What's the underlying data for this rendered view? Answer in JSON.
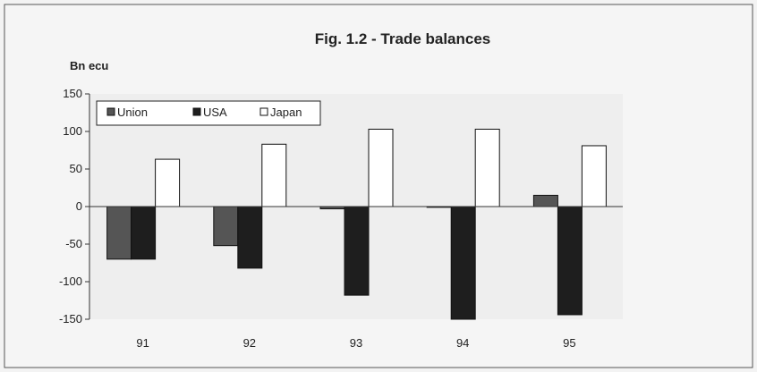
{
  "chart_data": {
    "type": "bar",
    "title": "Fig. 1.2 - Trade balances",
    "ylabel": "Bn ecu",
    "xlabel": "",
    "categories": [
      "91",
      "92",
      "93",
      "94",
      "95"
    ],
    "ylim": [
      -150,
      150
    ],
    "yticks": [
      150,
      100,
      50,
      0,
      -50,
      -100,
      -150
    ],
    "grid": false,
    "legend_position": "top-left",
    "series": [
      {
        "name": "Union",
        "values": [
          -70,
          -52,
          -3,
          -1,
          15
        ],
        "color": "#555555"
      },
      {
        "name": "USA",
        "values": [
          -70,
          -82,
          -118,
          -150,
          -144
        ],
        "color": "#1e1e1e"
      },
      {
        "name": "Japan",
        "values": [
          63,
          83,
          103,
          103,
          81
        ],
        "color": "#ffffff"
      }
    ]
  }
}
